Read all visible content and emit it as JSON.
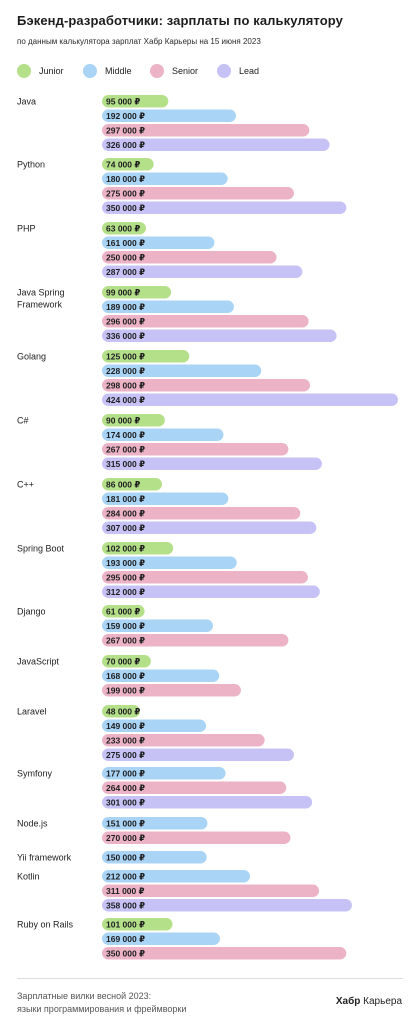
{
  "title": "Бэкенд-разработчики: зарплаты по калькулятору",
  "subtitle": "по данным калькулятора зарплат Хабр Карьеры на 15 июня 2023",
  "footer": {
    "note_line1": "Зарплатные вилки весной 2023:",
    "note_line2": "языки программирования и фреймворки",
    "brand_bold": "Хабр",
    "brand_rest": "Карьера"
  },
  "colors": {
    "Junior": "#b5e08a",
    "Middle": "#a9d4f5",
    "Senior": "#ecb3c6",
    "Lead": "#c6c2f5"
  },
  "chart_data": {
    "type": "bar",
    "orientation": "horizontal",
    "value_suffix": " ₽",
    "legend": [
      "Junior",
      "Middle",
      "Senior",
      "Lead"
    ],
    "legend_position": "top",
    "grid": false,
    "xlim": [
      0,
      424000
    ],
    "groups": [
      {
        "label": "Java",
        "bars": [
          {
            "level": "Junior",
            "value": 95000
          },
          {
            "level": "Middle",
            "value": 192000
          },
          {
            "level": "Senior",
            "value": 297000
          },
          {
            "level": "Lead",
            "value": 326000
          }
        ]
      },
      {
        "label": "Python",
        "bars": [
          {
            "level": "Junior",
            "value": 74000
          },
          {
            "level": "Middle",
            "value": 180000
          },
          {
            "level": "Senior",
            "value": 275000
          },
          {
            "level": "Lead",
            "value": 350000
          }
        ]
      },
      {
        "label": "PHP",
        "bars": [
          {
            "level": "Junior",
            "value": 63000
          },
          {
            "level": "Middle",
            "value": 161000
          },
          {
            "level": "Senior",
            "value": 250000
          },
          {
            "level": "Lead",
            "value": 287000
          }
        ]
      },
      {
        "label": "Java Spring Framework",
        "bars": [
          {
            "level": "Junior",
            "value": 99000
          },
          {
            "level": "Middle",
            "value": 189000
          },
          {
            "level": "Senior",
            "value": 296000
          },
          {
            "level": "Lead",
            "value": 336000
          }
        ]
      },
      {
        "label": "Golang",
        "bars": [
          {
            "level": "Junior",
            "value": 125000
          },
          {
            "level": "Middle",
            "value": 228000
          },
          {
            "level": "Senior",
            "value": 298000
          },
          {
            "level": "Lead",
            "value": 424000
          }
        ]
      },
      {
        "label": "C#",
        "bars": [
          {
            "level": "Junior",
            "value": 90000
          },
          {
            "level": "Middle",
            "value": 174000
          },
          {
            "level": "Senior",
            "value": 267000
          },
          {
            "level": "Lead",
            "value": 315000
          }
        ]
      },
      {
        "label": "C++",
        "bars": [
          {
            "level": "Junior",
            "value": 86000
          },
          {
            "level": "Middle",
            "value": 181000
          },
          {
            "level": "Senior",
            "value": 284000
          },
          {
            "level": "Lead",
            "value": 307000
          }
        ]
      },
      {
        "label": "Spring Boot",
        "bars": [
          {
            "level": "Junior",
            "value": 102000
          },
          {
            "level": "Middle",
            "value": 193000
          },
          {
            "level": "Senior",
            "value": 295000
          },
          {
            "level": "Lead",
            "value": 312000
          }
        ]
      },
      {
        "label": "Django",
        "bars": [
          {
            "level": "Junior",
            "value": 61000
          },
          {
            "level": "Middle",
            "value": 159000
          },
          {
            "level": "Senior",
            "value": 267000
          }
        ]
      },
      {
        "label": "JavaScript",
        "bars": [
          {
            "level": "Junior",
            "value": 70000
          },
          {
            "level": "Middle",
            "value": 168000
          },
          {
            "level": "Senior",
            "value": 199000
          }
        ]
      },
      {
        "label": "Laravel",
        "bars": [
          {
            "level": "Junior",
            "value": 48000
          },
          {
            "level": "Middle",
            "value": 149000
          },
          {
            "level": "Senior",
            "value": 233000
          },
          {
            "level": "Lead",
            "value": 275000
          }
        ]
      },
      {
        "label": "Symfony",
        "bars": [
          {
            "level": "Middle",
            "value": 177000
          },
          {
            "level": "Senior",
            "value": 264000
          },
          {
            "level": "Lead",
            "value": 301000
          }
        ]
      },
      {
        "label": "Node.js",
        "bars": [
          {
            "level": "Middle",
            "value": 151000
          },
          {
            "level": "Senior",
            "value": 270000
          }
        ]
      },
      {
        "label": "Yii framework",
        "bars": [
          {
            "level": "Middle",
            "value": 150000
          }
        ]
      },
      {
        "label": "Kotlin",
        "bars": [
          {
            "level": "Middle",
            "value": 212000
          },
          {
            "level": "Senior",
            "value": 311000
          },
          {
            "level": "Lead",
            "value": 358000
          }
        ]
      },
      {
        "label": "Ruby on Rails",
        "bars": [
          {
            "level": "Junior",
            "value": 101000
          },
          {
            "level": "Middle",
            "value": 169000
          },
          {
            "level": "Senior",
            "value": 350000
          }
        ]
      }
    ]
  }
}
